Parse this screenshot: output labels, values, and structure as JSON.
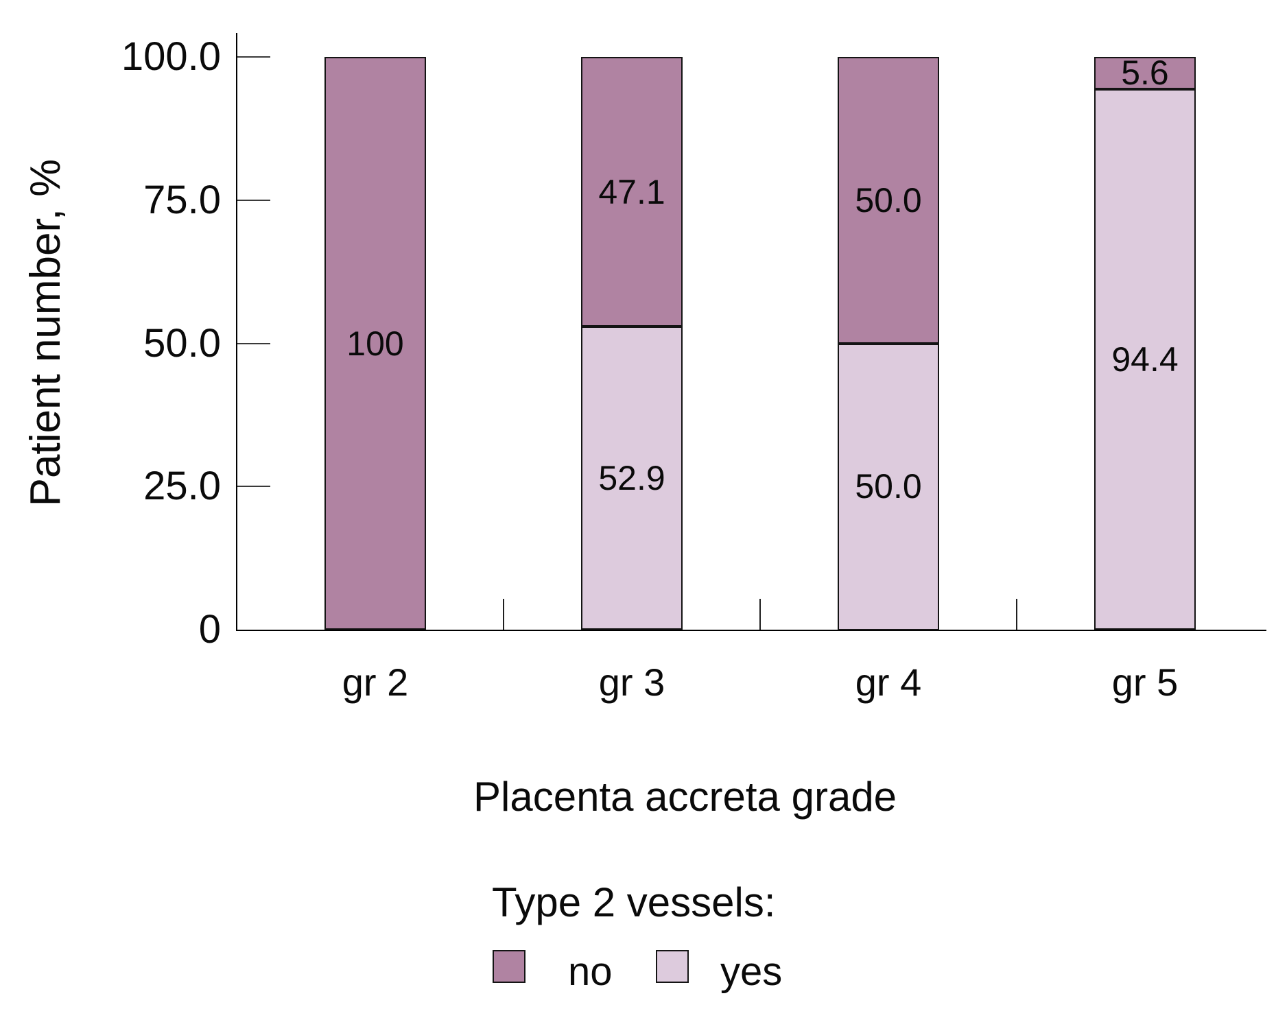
{
  "figure": {
    "background": "#ffffff",
    "text_color": "#0a0a0a"
  },
  "chart_data": {
    "type": "bar",
    "stacked": true,
    "title": "",
    "xlabel": "Placenta accreta grade",
    "ylabel": "Patient number, %",
    "categories": [
      "gr 2",
      "gr 3",
      "gr 4",
      "gr 5"
    ],
    "series": [
      {
        "name": "no",
        "color": "#b083a2",
        "values": [
          100,
          47.1,
          50.0,
          5.6
        ],
        "display_labels": [
          "100",
          "47.1",
          "50.0",
          "5.6"
        ]
      },
      {
        "name": "yes",
        "color": "#ddcbdd",
        "values": [
          0,
          52.9,
          50.0,
          94.4
        ],
        "display_labels": [
          "",
          "52.9",
          "50.0",
          "94.4"
        ]
      }
    ],
    "stack_order_bottom_to_top": [
      "yes",
      "no"
    ],
    "ylim": [
      0,
      100
    ],
    "yticks": [
      {
        "value": 100,
        "label": "100.0"
      },
      {
        "value": 75,
        "label": "75.0"
      },
      {
        "value": 50,
        "label": "50.0"
      },
      {
        "value": 25,
        "label": "25.0"
      },
      {
        "value": 0,
        "label": "0"
      }
    ],
    "grid": false,
    "legend": {
      "title": "Type 2 vessels:",
      "position": "bottom",
      "entries": [
        {
          "label": "no",
          "series": "no"
        },
        {
          "label": "yes",
          "series": "yes"
        }
      ]
    }
  }
}
